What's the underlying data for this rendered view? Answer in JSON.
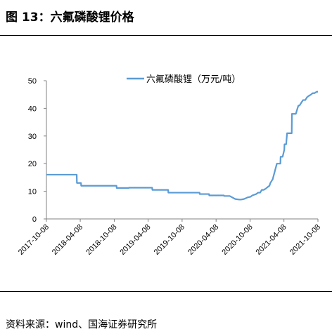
{
  "figure": {
    "title": "图 13：六氟磷酸锂价格",
    "source": "资料来源：wind、国海证券研究所"
  },
  "chart_data": {
    "type": "line",
    "title": "",
    "xlabel": "",
    "ylabel": "",
    "ylim": [
      0,
      50
    ],
    "yticks": [
      0,
      10,
      20,
      30,
      40,
      50
    ],
    "xlim": [
      "2017-10-08",
      "2021-10-08"
    ],
    "xticks": [
      "2017-10-08",
      "2018-04-08",
      "2018-10-08",
      "2019-04-08",
      "2019-10-08",
      "2020-04-08",
      "2020-10-08",
      "2021-04-08",
      "2021-10-08"
    ],
    "grid": false,
    "legend_position": "top-center",
    "series": [
      {
        "name": "六氟磷酸锂（万元/吨）",
        "color": "#5b9bd5",
        "x": [
          "2017-10-08",
          "2018-03-20",
          "2018-03-21",
          "2018-04-12",
          "2018-04-13",
          "2018-10-20",
          "2018-10-21",
          "2018-12-25",
          "2018-12-26",
          "2019-04-30",
          "2019-05-01",
          "2019-07-25",
          "2019-07-26",
          "2020-01-10",
          "2020-01-11",
          "2020-03-01",
          "2020-03-02",
          "2020-05-20",
          "2020-05-21",
          "2020-06-20",
          "2020-07-20",
          "2020-08-10",
          "2020-08-20",
          "2020-09-05",
          "2020-09-15",
          "2020-09-25",
          "2020-10-10",
          "2020-10-20",
          "2020-11-10",
          "2020-11-20",
          "2020-12-01",
          "2020-12-10",
          "2020-12-20",
          "2021-01-01",
          "2021-01-10",
          "2021-01-20",
          "2021-01-25",
          "2021-02-05",
          "2021-02-06",
          "2021-03-01",
          "2021-03-20",
          "2021-03-21",
          "2021-04-01",
          "2021-04-10",
          "2021-04-11",
          "2021-04-20",
          "2021-04-25",
          "2021-05-05",
          "2021-05-20",
          "2021-05-21",
          "2021-06-10",
          "2021-06-11",
          "2021-06-20",
          "2021-06-25",
          "2021-07-01",
          "2021-07-10",
          "2021-07-20",
          "2021-08-01",
          "2021-08-10",
          "2021-08-20",
          "2021-09-01",
          "2021-09-10",
          "2021-09-20",
          "2021-10-01",
          "2021-10-08"
        ],
        "values": [
          16,
          16,
          13,
          13,
          12,
          12,
          11.2,
          11.2,
          11.3,
          11.3,
          10.5,
          10.5,
          9.5,
          9.5,
          9,
          9,
          8.5,
          8.5,
          8.3,
          8.3,
          7.2,
          7,
          7,
          7.2,
          7.5,
          7.8,
          8,
          8.5,
          9,
          9.5,
          9.5,
          10.5,
          10.5,
          11,
          11.5,
          12,
          13,
          14.2,
          14.2,
          20,
          20,
          22.5,
          22.5,
          25,
          27,
          27,
          31,
          31,
          31,
          38,
          38,
          38,
          40,
          41,
          41,
          42,
          43,
          43,
          44,
          44.5,
          45,
          45.5,
          45.5,
          46,
          46
        ]
      }
    ]
  }
}
